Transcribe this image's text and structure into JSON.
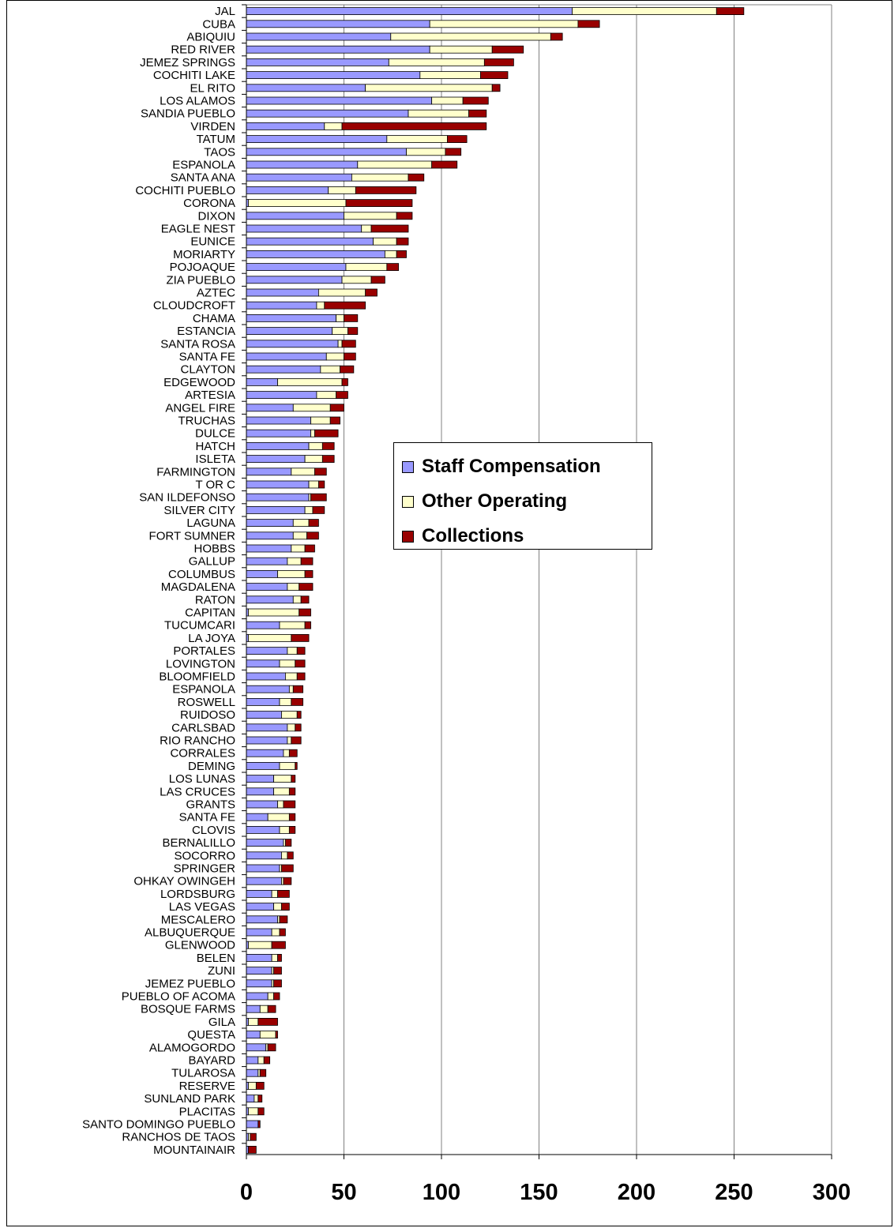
{
  "chart_data": {
    "type": "bar",
    "orientation": "horizontal",
    "stacked": true,
    "xlim": [
      0,
      300
    ],
    "x_ticks": [
      "0",
      "50",
      "100",
      "150",
      "200",
      "250",
      "300"
    ],
    "grid": "vertical major gridlines",
    "legend_position": "center-right",
    "categories": [
      "JAL",
      "CUBA",
      "ABIQUIU",
      "RED RIVER",
      "JEMEZ SPRINGS",
      "COCHITI LAKE",
      "EL RITO",
      "LOS ALAMOS",
      "SANDIA PUEBLO",
      "VIRDEN",
      "TATUM",
      "TAOS",
      "ESPANOLA",
      "SANTA ANA",
      "COCHITI PUEBLO",
      "CORONA",
      "DIXON",
      "EAGLE NEST",
      "EUNICE",
      "MORIARTY",
      "POJOAQUE",
      "ZIA PUEBLO",
      "AZTEC",
      "CLOUDCROFT",
      "CHAMA",
      "ESTANCIA",
      "SANTA ROSA",
      "SANTA FE",
      "CLAYTON",
      "EDGEWOOD",
      "ARTESIA",
      "ANGEL FIRE",
      "TRUCHAS",
      "DULCE",
      "HATCH",
      "ISLETA",
      "FARMINGTON",
      "T OR C",
      "SAN ILDEFONSO",
      "SILVER CITY",
      "LAGUNA",
      "FORT SUMNER",
      "HOBBS",
      "GALLUP",
      "COLUMBUS",
      "MAGDALENA",
      "RATON",
      "CAPITAN",
      "TUCUMCARI",
      "LA JOYA",
      "PORTALES",
      "LOVINGTON",
      "BLOOMFIELD",
      "ESPANOLA",
      "ROSWELL",
      "RUIDOSO",
      "CARLSBAD",
      "RIO RANCHO",
      "CORRALES",
      "DEMING",
      "LOS LUNAS",
      "LAS CRUCES",
      "GRANTS",
      "SANTA FE",
      "CLOVIS",
      "BERNALILLO",
      "SOCORRO",
      "SPRINGER",
      "OHKAY OWINGEH",
      "LORDSBURG",
      "LAS VEGAS",
      "MESCALERO",
      "ALBUQUERQUE",
      "GLENWOOD",
      "BELEN",
      "ZUNI",
      "JEMEZ PUEBLO",
      "PUEBLO OF ACOMA",
      "BOSQUE FARMS",
      "GILA",
      "QUESTA",
      "ALAMOGORDO",
      "BAYARD",
      "TULAROSA",
      "RESERVE",
      "SUNLAND PARK",
      "PLACITAS",
      "SANTO DOMINGO PUEBLO",
      "RANCHOS DE TAOS",
      "MOUNTAINAIR"
    ],
    "series": [
      {
        "name": "Staff Compensation",
        "color": "#9999ff",
        "values": [
          167,
          94,
          74,
          94,
          73,
          89,
          61,
          95,
          83,
          40,
          72,
          82,
          57,
          54,
          42,
          1,
          50,
          59,
          65,
          71,
          51,
          49,
          37,
          36,
          46,
          44,
          47,
          41,
          38,
          16,
          36,
          24,
          33,
          33,
          32,
          30,
          23,
          32,
          32,
          30,
          24,
          24,
          23,
          21,
          16,
          21,
          24,
          1,
          17,
          1,
          21,
          17,
          20,
          22,
          17,
          18,
          21,
          21,
          19,
          17,
          14,
          14,
          16,
          11,
          17,
          19,
          18,
          17,
          18,
          13,
          14,
          16,
          13,
          1,
          13,
          13,
          13,
          11,
          7,
          1,
          7,
          10,
          6,
          6,
          1,
          4,
          1,
          6,
          1,
          1
        ]
      },
      {
        "name": "Other Operating",
        "color": "#ffffcc",
        "values": [
          74,
          76,
          82,
          32,
          49,
          31,
          65,
          16,
          31,
          9,
          31,
          20,
          38,
          29,
          14,
          50,
          27,
          5,
          12,
          6,
          21,
          15,
          24,
          4,
          4,
          8,
          2,
          9,
          10,
          33,
          10,
          19,
          10,
          2,
          7,
          9,
          12,
          5,
          1,
          4,
          8,
          7,
          7,
          7,
          14,
          6,
          4,
          26,
          13,
          22,
          5,
          8,
          6,
          2,
          6,
          8,
          4,
          2,
          3,
          8,
          9,
          8,
          3,
          11,
          5,
          1,
          3,
          1,
          1,
          3,
          4,
          1,
          4,
          12,
          3,
          1,
          1,
          3,
          4,
          5,
          8,
          1,
          3,
          1,
          4,
          2,
          5,
          0,
          1,
          0
        ]
      },
      {
        "name": "Collections",
        "color": "#990000",
        "values": [
          14,
          11,
          6,
          16,
          15,
          14,
          4,
          13,
          9,
          74,
          10,
          8,
          13,
          8,
          31,
          34,
          8,
          19,
          6,
          5,
          6,
          7,
          6,
          21,
          7,
          5,
          7,
          6,
          7,
          3,
          6,
          7,
          5,
          12,
          6,
          6,
          6,
          3,
          8,
          6,
          5,
          6,
          5,
          6,
          4,
          7,
          4,
          6,
          3,
          9,
          4,
          5,
          4,
          5,
          6,
          2,
          3,
          5,
          4,
          1,
          2,
          3,
          6,
          3,
          3,
          3,
          3,
          6,
          4,
          6,
          4,
          4,
          3,
          7,
          2,
          4,
          4,
          3,
          4,
          10,
          1,
          4,
          3,
          3,
          4,
          2,
          3,
          1,
          3,
          4
        ]
      }
    ]
  }
}
